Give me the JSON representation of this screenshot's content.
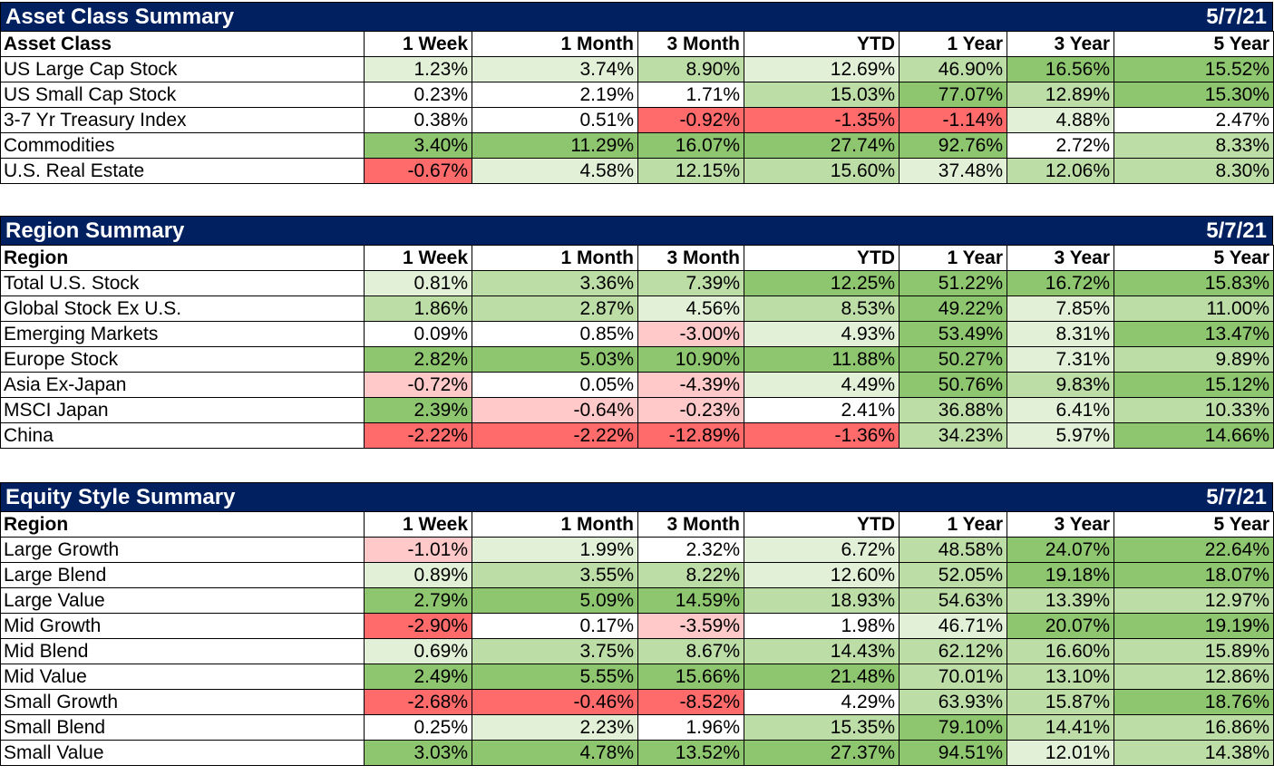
{
  "colors": {
    "banner": "#002060",
    "green_strong": "#8ec56f",
    "green_mid": "#bddda7",
    "green_light": "#e1f0d7",
    "neutral": "#ffffff",
    "red_light": "#ffc9c9",
    "red_strong": "#ff6b6b"
  },
  "sections": [
    {
      "title": "Asset Class Summary",
      "date": "5/7/21",
      "headers": [
        "Asset Class",
        "1 Week",
        "1 Month",
        "3 Month",
        "YTD",
        "1 Year",
        "3 Year",
        "5 Year"
      ],
      "rows": [
        {
          "label": "US Large Cap Stock",
          "values": [
            "1.23%",
            "3.74%",
            "8.90%",
            "12.69%",
            "46.90%",
            "16.56%",
            "15.52%"
          ]
        },
        {
          "label": "US Small Cap Stock",
          "values": [
            "0.23%",
            "2.19%",
            "1.71%",
            "15.03%",
            "77.07%",
            "12.89%",
            "15.30%"
          ]
        },
        {
          "label": "3-7 Yr Treasury Index",
          "values": [
            "0.38%",
            "0.51%",
            "-0.92%",
            "-1.35%",
            "-1.14%",
            "4.88%",
            "2.47%"
          ]
        },
        {
          "label": "Commodities",
          "values": [
            "3.40%",
            "11.29%",
            "16.07%",
            "27.74%",
            "92.76%",
            "2.72%",
            "8.33%"
          ]
        },
        {
          "label": "U.S. Real Estate",
          "values": [
            "-0.67%",
            "4.58%",
            "12.15%",
            "15.60%",
            "37.48%",
            "12.06%",
            "8.30%"
          ]
        }
      ]
    },
    {
      "title": "Region Summary",
      "date": "5/7/21",
      "headers": [
        "Region",
        "1 Week",
        "1 Month",
        "3 Month",
        "YTD",
        "1 Year",
        "3 Year",
        "5 Year"
      ],
      "rows": [
        {
          "label": "Total U.S. Stock",
          "values": [
            "0.81%",
            "3.36%",
            "7.39%",
            "12.25%",
            "51.22%",
            "16.72%",
            "15.83%"
          ]
        },
        {
          "label": "Global Stock Ex U.S.",
          "values": [
            "1.86%",
            "2.87%",
            "4.56%",
            "8.53%",
            "49.22%",
            "7.85%",
            "11.00%"
          ]
        },
        {
          "label": "Emerging Markets",
          "values": [
            "0.09%",
            "0.85%",
            "-3.00%",
            "4.93%",
            "53.49%",
            "8.31%",
            "13.47%"
          ]
        },
        {
          "label": "Europe Stock",
          "values": [
            "2.82%",
            "5.03%",
            "10.90%",
            "11.88%",
            "50.27%",
            "7.31%",
            "9.89%"
          ]
        },
        {
          "label": "Asia Ex-Japan",
          "values": [
            "-0.72%",
            "0.05%",
            "-4.39%",
            "4.49%",
            "50.76%",
            "9.83%",
            "15.12%"
          ]
        },
        {
          "label": "MSCI Japan",
          "values": [
            "2.39%",
            "-0.64%",
            "-0.23%",
            "2.41%",
            "36.88%",
            "6.41%",
            "10.33%"
          ]
        },
        {
          "label": "China",
          "values": [
            "-2.22%",
            "-2.22%",
            "-12.89%",
            "-1.36%",
            "34.23%",
            "5.97%",
            "14.66%"
          ]
        }
      ]
    },
    {
      "title": "Equity Style Summary",
      "date": "5/7/21",
      "headers": [
        "Region",
        "1 Week",
        "1 Month",
        "3 Month",
        "YTD",
        "1 Year",
        "3 Year",
        "5 Year"
      ],
      "rows": [
        {
          "label": "Large Growth",
          "values": [
            "-1.01%",
            "1.99%",
            "2.32%",
            "6.72%",
            "48.58%",
            "24.07%",
            "22.64%"
          ]
        },
        {
          "label": "Large Blend",
          "values": [
            "0.89%",
            "3.55%",
            "8.22%",
            "12.60%",
            "52.05%",
            "19.18%",
            "18.07%"
          ]
        },
        {
          "label": "Large Value",
          "values": [
            "2.79%",
            "5.09%",
            "14.59%",
            "18.93%",
            "54.63%",
            "13.39%",
            "12.97%"
          ]
        },
        {
          "label": "Mid Growth",
          "values": [
            "-2.90%",
            "0.17%",
            "-3.59%",
            "1.98%",
            "46.71%",
            "20.07%",
            "19.19%"
          ]
        },
        {
          "label": "Mid Blend",
          "values": [
            "0.69%",
            "3.75%",
            "8.67%",
            "14.43%",
            "62.12%",
            "16.60%",
            "15.89%"
          ]
        },
        {
          "label": "Mid Value",
          "values": [
            "2.49%",
            "5.55%",
            "15.66%",
            "21.48%",
            "70.01%",
            "13.10%",
            "12.86%"
          ]
        },
        {
          "label": "Small Growth",
          "values": [
            "-2.68%",
            "-0.46%",
            "-8.52%",
            "4.29%",
            "63.93%",
            "15.87%",
            "18.76%"
          ]
        },
        {
          "label": "Small Blend",
          "values": [
            "0.25%",
            "2.23%",
            "1.96%",
            "15.35%",
            "79.10%",
            "14.41%",
            "16.86%"
          ]
        },
        {
          "label": "Small Value",
          "values": [
            "3.03%",
            "4.78%",
            "13.52%",
            "27.37%",
            "94.51%",
            "12.01%",
            "14.38%"
          ]
        }
      ]
    }
  ]
}
